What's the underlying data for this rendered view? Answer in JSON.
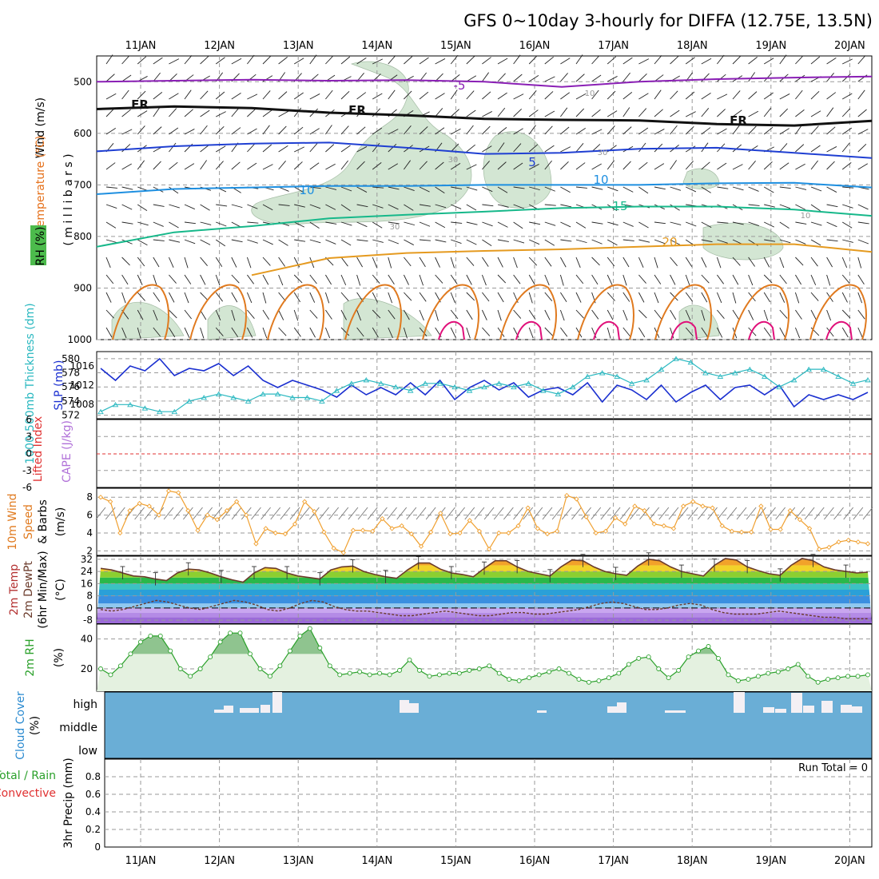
{
  "title": "GFS 0~10day 3-hourly for DIFFA (12.75E, 13.5N)",
  "dates": [
    "11JAN",
    "12JAN",
    "13JAN",
    "14JAN",
    "15JAN",
    "16JAN",
    "17JAN",
    "18JAN",
    "19JAN",
    "20JAN"
  ],
  "run_total": "Run Total = 0",
  "colors": {
    "purple": "#8a1fb5",
    "black": "#111111",
    "blue": "#1f3fd2",
    "lightblue": "#1e8fe0",
    "teal": "#16b88a",
    "orange": "#e59a1f",
    "darkorange": "#e07a1f",
    "magenta": "#e0107a",
    "rh_fill": "#cfe4cf",
    "slp": "#1a2fd0",
    "thick": "#2ab8c0",
    "wind10": "#f0a030",
    "cloud": "#6aaed6",
    "rh2m": "#2aa02a"
  },
  "chart_data": [
    {
      "type": "line",
      "panel": "upper-air",
      "ylabel_parts": [
        "Wind (m/s)",
        "Temperature (°C)",
        "RH (%)",
        "(millibars)"
      ],
      "ylabel_m": "( m i l l i b a r s )",
      "yticks": [
        500,
        600,
        700,
        800,
        900,
        1000
      ],
      "ylim": [
        450,
        1000
      ],
      "xlim_days": [
        0,
        10
      ],
      "series": [
        {
          "name": "-5",
          "p": [
            500,
            498,
            496,
            498,
            497,
            500,
            510,
            500,
            495,
            492,
            490
          ]
        },
        {
          "name": "FR",
          "p": [
            553,
            548,
            551,
            560,
            565,
            572,
            574,
            575,
            582,
            585,
            576
          ]
        },
        {
          "name": "5",
          "p": [
            635,
            625,
            620,
            618,
            628,
            640,
            638,
            630,
            628,
            638,
            648
          ]
        },
        {
          "name": "10",
          "p": [
            718,
            708,
            705,
            702,
            702,
            700,
            700,
            700,
            697,
            696,
            705
          ]
        },
        {
          "name": "15",
          "p": [
            820,
            792,
            780,
            765,
            758,
            752,
            745,
            742,
            742,
            748,
            760
          ]
        },
        {
          "name": "20",
          "p": [
            null,
            null,
            875,
            842,
            832,
            828,
            825,
            820,
            815,
            815,
            830
          ]
        }
      ],
      "contour_labels": [
        "-5",
        "FR",
        "FR",
        "FR",
        "5",
        "10",
        "10",
        "15",
        "20",
        "10",
        "30",
        "30",
        "30",
        "10"
      ]
    },
    {
      "type": "line",
      "panel": "slp-thickness",
      "ylabel_left": "1000-500mb Thickness (dm)",
      "ylabel_right": "SLP (mb)",
      "yticks_thickness": [
        572,
        574,
        576,
        578,
        580
      ],
      "yticks_slp": [
        1008,
        1012,
        1016
      ],
      "series": [
        {
          "name": "SLP",
          "values": [
            1015.5,
            1013,
            1016,
            1015,
            1017.5,
            1014,
            1015.5,
            1015,
            1016.5,
            1014,
            1016,
            1013,
            1011.5,
            1013,
            1012,
            1011,
            1009.5,
            1012,
            1010,
            1011.5,
            1010,
            1012.5,
            1010,
            1013,
            1009,
            1011.5,
            1013,
            1011,
            1012.5,
            1009.5,
            1011,
            1011.5,
            1010,
            1012.5,
            1008.5,
            1012,
            1011,
            1009,
            1012,
            1008.5,
            1010.5,
            1012,
            1009,
            1011.5,
            1012,
            1010,
            1012,
            1007.5,
            1010,
            1009,
            1010,
            1009,
            1010.5
          ]
        },
        {
          "name": "Thickness",
          "values": [
            572.5,
            573.5,
            573.5,
            573,
            572.5,
            572.5,
            574,
            574.5,
            575,
            574.5,
            574,
            575,
            575,
            574.5,
            574.5,
            574,
            575.5,
            576.5,
            577,
            576.5,
            576,
            575.5,
            576.5,
            576.5,
            576,
            575.5,
            576,
            576.5,
            576,
            576.5,
            575.5,
            575,
            576,
            577.5,
            578,
            577.5,
            576.5,
            577,
            578.5,
            580,
            579.5,
            578,
            577.5,
            578,
            578.5,
            577.5,
            576,
            577,
            578.5,
            578.5,
            577.5,
            576.5,
            577
          ]
        }
      ]
    },
    {
      "type": "line",
      "panel": "lifted-index-cape",
      "ylabel_left": "Lifted Index",
      "ylabel_right": "CAPE (J/kg)",
      "yticks": [
        "6",
        "3",
        "0",
        "-3",
        "-6"
      ],
      "series": []
    },
    {
      "type": "line",
      "panel": "wind10m",
      "ylabel_parts": [
        "10m Wind",
        "Speed",
        "& Barbs",
        "(m/s)"
      ],
      "yticks": [
        2,
        4,
        6,
        8
      ],
      "ylim": [
        1.5,
        9
      ],
      "series": [
        {
          "name": "10m Wind Speed",
          "values": [
            8,
            7.5,
            4,
            6.5,
            7.3,
            7,
            6,
            8.7,
            8.5,
            6.5,
            4.3,
            6,
            5.5,
            6.5,
            7.5,
            6,
            2.8,
            4.5,
            4,
            3.9,
            5,
            7.5,
            6.4,
            4.1,
            2.3,
            1.8,
            4.3,
            4.3,
            4.2,
            5.6,
            4.5,
            4.8,
            3.9,
            2.5,
            4.1,
            6.2,
            3.9,
            4,
            5.4,
            4.2,
            2.2,
            4,
            4,
            4.8,
            6.8,
            4.5,
            3.9,
            4.2,
            8.2,
            7.8,
            5.8,
            4,
            4.2,
            5.7,
            5,
            7,
            6.5,
            5,
            4.8,
            4.5,
            7,
            7.5,
            7,
            6.8,
            4.8,
            4.2,
            4.1,
            4.1,
            7,
            4.4,
            4.4,
            6.5,
            5.5,
            4.5,
            2.2,
            2.4,
            3,
            3.2,
            3,
            2.8
          ]
        }
      ]
    },
    {
      "type": "area",
      "panel": "temp2m",
      "ylabel_parts": [
        "2m Temp",
        "2m DewPt",
        "(6hr Min/Max)",
        "(°C)"
      ],
      "yticks": [
        "32",
        "24",
        "16",
        "8",
        "0",
        "-8"
      ],
      "ylim": [
        -10,
        34
      ],
      "series": [
        {
          "name": "2m Temp",
          "values": [
            26,
            25,
            23,
            21,
            20.5,
            19,
            18,
            23,
            25.5,
            25,
            23,
            20.5,
            18.5,
            17,
            23,
            26.5,
            26,
            23,
            21,
            20,
            19,
            25,
            27,
            27.5,
            24,
            22,
            20.5,
            19.5,
            25,
            29.5,
            29.5,
            25.5,
            23,
            22,
            20.5,
            26,
            31,
            31,
            27,
            24,
            22.5,
            21,
            27,
            31.5,
            31,
            27,
            24,
            22.5,
            21.5,
            27.5,
            32,
            31,
            27,
            24,
            22.5,
            21,
            28,
            32.5,
            31.5,
            27,
            24.5,
            22.5,
            21.5,
            28,
            32.5,
            31,
            27,
            25,
            24,
            23,
            23.5
          ]
        },
        {
          "name": "2m DewPt",
          "values": [
            -1,
            -2,
            -1,
            1,
            3,
            5,
            4,
            2,
            0,
            -1,
            1,
            3,
            5,
            4,
            2,
            -1,
            -2,
            0,
            3,
            5,
            4,
            1,
            -1,
            -2,
            -2,
            -3,
            -4,
            -5,
            -5,
            -4,
            -3,
            -2,
            -3,
            -4,
            -5,
            -5,
            -4,
            -3,
            -3,
            -4,
            -4,
            -3,
            -2,
            -1,
            1,
            3,
            4,
            3,
            1,
            -1,
            -1,
            0,
            2,
            3,
            2,
            -1,
            -3,
            -4,
            -4,
            -4,
            -3,
            -2,
            -3,
            -4,
            -5,
            -6,
            -6,
            -7,
            -7,
            -7
          ]
        }
      ]
    },
    {
      "type": "area",
      "panel": "rh2m",
      "ylabel_parts": [
        "2m RH",
        "(%)"
      ],
      "yticks": [
        20,
        40
      ],
      "ylim": [
        5,
        50
      ],
      "series": [
        {
          "name": "2m RH",
          "values": [
            20,
            16,
            22,
            30,
            38,
            42,
            42,
            32,
            20,
            15,
            20,
            28,
            38,
            44,
            44,
            30,
            20,
            15,
            22,
            32,
            42,
            47,
            34,
            22,
            16,
            17,
            18,
            16,
            17,
            16,
            19,
            26,
            19,
            15,
            16,
            17,
            17,
            19,
            20,
            22,
            17,
            13,
            12,
            14,
            16,
            18,
            20,
            17,
            13,
            11,
            12,
            14,
            17,
            23,
            27,
            28,
            20,
            14,
            19,
            28,
            32,
            35,
            27,
            16,
            12,
            13,
            15,
            17,
            18,
            20,
            23,
            15,
            11,
            13,
            14,
            15,
            15,
            16
          ]
        }
      ]
    },
    {
      "type": "bar",
      "panel": "cloud",
      "ylabel_parts": [
        "Cloud Cover",
        "(%)"
      ],
      "levels": [
        "high",
        "middle",
        "low"
      ],
      "series": [
        {
          "name": "high",
          "values": [
            0,
            0,
            0,
            0,
            0,
            0,
            0,
            0,
            0,
            0,
            0,
            0,
            0,
            0,
            0,
            0,
            0,
            0,
            0,
            0,
            0,
            0,
            0,
            0,
            0,
            0,
            0,
            0,
            0,
            0,
            0,
            0,
            0,
            0,
            0,
            0,
            0,
            0,
            0,
            0,
            0,
            0,
            0,
            0,
            0,
            0,
            0,
            0,
            0,
            0,
            0,
            0,
            0,
            0,
            0,
            0,
            0,
            0,
            0,
            0,
            0,
            0,
            0,
            0,
            0,
            0,
            0,
            0,
            0,
            0,
            0,
            0,
            0,
            0,
            0,
            0,
            0,
            0
          ]
        }
      ]
    },
    {
      "type": "bar",
      "panel": "precip",
      "ylabel_parts": [
        "Total / Rain",
        "Convective",
        "3hr Precip (mm)"
      ],
      "yticks": [
        "0",
        "0.2",
        "0.4",
        "0.6",
        "0.8"
      ],
      "ylim": [
        0,
        1
      ],
      "series": [
        {
          "name": "Total",
          "values": []
        },
        {
          "name": "Convective",
          "values": []
        }
      ]
    }
  ]
}
